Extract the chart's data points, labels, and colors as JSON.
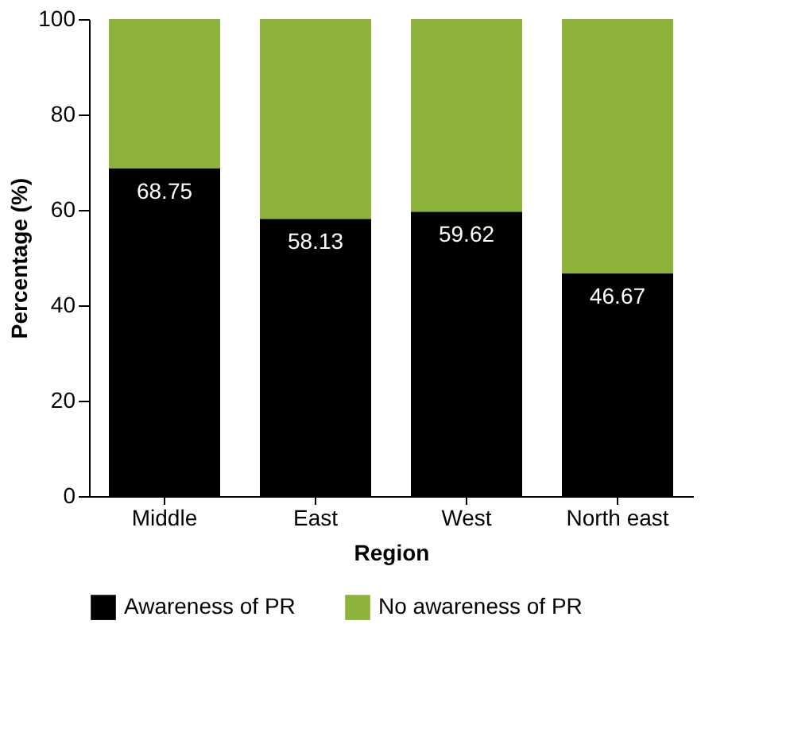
{
  "chart_data": {
    "type": "bar",
    "stacked": true,
    "xlabel": "Region",
    "ylabel": "Percentage (%)",
    "categories": [
      "Middle",
      "East",
      "West",
      "North east"
    ],
    "series": [
      {
        "name": "Awareness of PR",
        "color": "#000000",
        "values": [
          68.75,
          58.13,
          59.62,
          46.67
        ],
        "value_labels": [
          "68.75",
          "58.13",
          "59.62",
          "46.67"
        ]
      },
      {
        "name": "No awareness of PR",
        "color": "#8db33a",
        "values": [
          31.25,
          41.87,
          40.38,
          53.33
        ]
      }
    ],
    "ylim": [
      0,
      100
    ],
    "yticks": [
      0,
      20,
      40,
      60,
      80,
      100
    ],
    "grid": false,
    "legend": "bottom"
  }
}
